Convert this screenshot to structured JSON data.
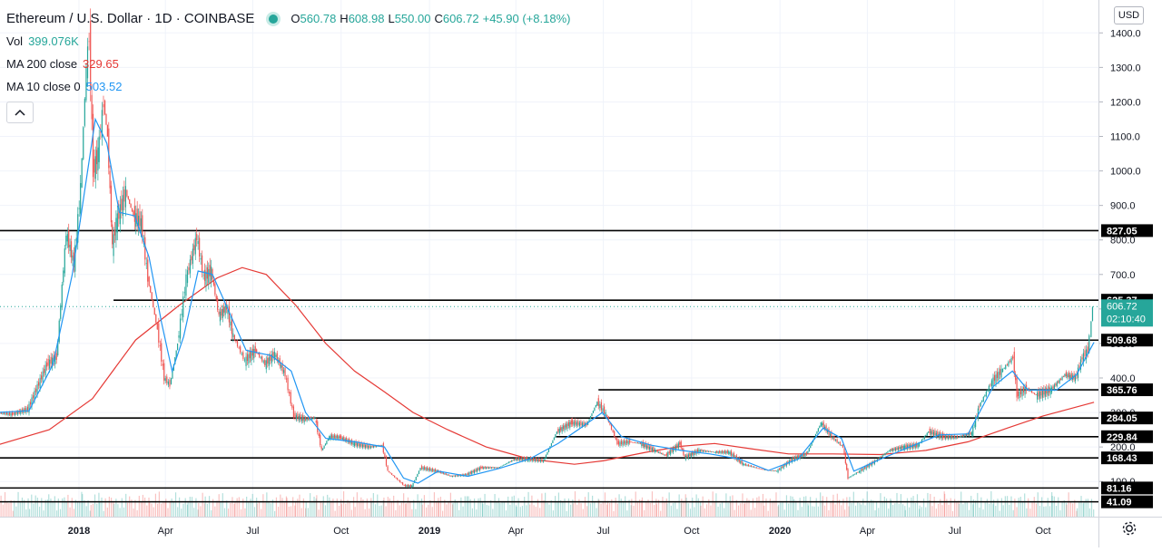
{
  "legend": {
    "title": "Ethereum / U.S. Dollar · 1D · COINBASE",
    "open_label": "O",
    "open": "560.78",
    "high_label": "H",
    "high": "608.98",
    "low_label": "L",
    "low": "550.00",
    "close_label": "C",
    "close": "606.72",
    "change": "+45.90 (+8.18%)",
    "vol_label": "Vol",
    "vol": "399.076K",
    "ma200_label": "MA 200 close",
    "ma200": "329.65",
    "ma10_label": "MA 10 close 0",
    "ma10": "503.52",
    "collapse_icon": "chevron-up-icon"
  },
  "currency_button": "USD",
  "settings_icon": "gear-icon",
  "colors": {
    "up": "#26a69a",
    "down": "#ef5350",
    "ma200": "#e53935",
    "ma10": "#2196f3",
    "level_line": "#000000",
    "grid": "#f0f3fa"
  },
  "chart_data": {
    "type": "line",
    "title": "Ethereum / U.S. Dollar · 1D · COINBASE",
    "price_axis_ticks": [
      100,
      200,
      300,
      400,
      500,
      600,
      700,
      800,
      900,
      1000,
      1100,
      1200,
      1300,
      1400
    ],
    "time_axis_ticks": [
      {
        "label": "2018",
        "date": "2018-01-01",
        "bold": true
      },
      {
        "label": "Apr",
        "date": "2018-04-01",
        "bold": false
      },
      {
        "label": "Jul",
        "date": "2018-07-01",
        "bold": false
      },
      {
        "label": "Oct",
        "date": "2018-10-01",
        "bold": false
      },
      {
        "label": "2019",
        "date": "2019-01-01",
        "bold": true
      },
      {
        "label": "Apr",
        "date": "2019-04-01",
        "bold": false
      },
      {
        "label": "Jul",
        "date": "2019-07-01",
        "bold": false
      },
      {
        "label": "Oct",
        "date": "2019-10-01",
        "bold": false
      },
      {
        "label": "2020",
        "date": "2020-01-01",
        "bold": true
      },
      {
        "label": "Apr",
        "date": "2020-04-01",
        "bold": false
      },
      {
        "label": "Jul",
        "date": "2020-07-01",
        "bold": false
      },
      {
        "label": "Oct",
        "date": "2020-10-01",
        "bold": false
      }
    ],
    "horizontal_levels": [
      {
        "value": 827.05,
        "label": "827.05",
        "from_date": "2017-10-01"
      },
      {
        "value": 625.37,
        "label": "625.37",
        "from_date": "2018-02-06"
      },
      {
        "value": 509.68,
        "label": "509.68",
        "from_date": "2018-06-08"
      },
      {
        "value": 365.76,
        "label": "365.76",
        "from_date": "2019-06-26"
      },
      {
        "value": 284.05,
        "label": "284.05",
        "from_date": "2017-10-01"
      },
      {
        "value": 229.84,
        "label": "229.84",
        "from_date": "2019-05-13"
      },
      {
        "value": 168.43,
        "label": "168.43",
        "from_date": "2017-10-01"
      },
      {
        "value": 81.16,
        "label": "81.16",
        "from_date": "2017-10-01"
      },
      {
        "value": 41.09,
        "label": "41.09",
        "from_date": "2017-10-01"
      }
    ],
    "last_price": {
      "value": 606.72,
      "label": "606.72",
      "countdown": "02:10:40"
    },
    "price_series": [
      {
        "date": "2017-10-05",
        "value": 300
      },
      {
        "date": "2017-10-25",
        "value": 295
      },
      {
        "date": "2017-11-10",
        "value": 310
      },
      {
        "date": "2017-11-30",
        "value": 440
      },
      {
        "date": "2017-12-10",
        "value": 460
      },
      {
        "date": "2017-12-20",
        "value": 820
      },
      {
        "date": "2017-12-28",
        "value": 730
      },
      {
        "date": "2018-01-04",
        "value": 950
      },
      {
        "date": "2018-01-10",
        "value": 1300
      },
      {
        "date": "2018-01-13",
        "value": 1390
      },
      {
        "date": "2018-01-17",
        "value": 1000
      },
      {
        "date": "2018-01-22",
        "value": 1050
      },
      {
        "date": "2018-01-28",
        "value": 1200
      },
      {
        "date": "2018-02-01",
        "value": 1100
      },
      {
        "date": "2018-02-06",
        "value": 780
      },
      {
        "date": "2018-02-10",
        "value": 850
      },
      {
        "date": "2018-02-20",
        "value": 940
      },
      {
        "date": "2018-02-28",
        "value": 870
      },
      {
        "date": "2018-03-08",
        "value": 850
      },
      {
        "date": "2018-03-15",
        "value": 690
      },
      {
        "date": "2018-03-25",
        "value": 540
      },
      {
        "date": "2018-04-01",
        "value": 400
      },
      {
        "date": "2018-04-07",
        "value": 380
      },
      {
        "date": "2018-04-15",
        "value": 500
      },
      {
        "date": "2018-04-24",
        "value": 690
      },
      {
        "date": "2018-05-05",
        "value": 810
      },
      {
        "date": "2018-05-12",
        "value": 690
      },
      {
        "date": "2018-05-20",
        "value": 710
      },
      {
        "date": "2018-05-28",
        "value": 580
      },
      {
        "date": "2018-06-05",
        "value": 605
      },
      {
        "date": "2018-06-12",
        "value": 520
      },
      {
        "date": "2018-06-24",
        "value": 450
      },
      {
        "date": "2018-07-05",
        "value": 480
      },
      {
        "date": "2018-07-15",
        "value": 440
      },
      {
        "date": "2018-07-25",
        "value": 470
      },
      {
        "date": "2018-08-05",
        "value": 410
      },
      {
        "date": "2018-08-14",
        "value": 290
      },
      {
        "date": "2018-08-25",
        "value": 280
      },
      {
        "date": "2018-09-05",
        "value": 285
      },
      {
        "date": "2018-09-12",
        "value": 190
      },
      {
        "date": "2018-09-20",
        "value": 230
      },
      {
        "date": "2018-10-01",
        "value": 228
      },
      {
        "date": "2018-10-15",
        "value": 210
      },
      {
        "date": "2018-11-01",
        "value": 200
      },
      {
        "date": "2018-11-14",
        "value": 205
      },
      {
        "date": "2018-11-20",
        "value": 130
      },
      {
        "date": "2018-12-07",
        "value": 88
      },
      {
        "date": "2018-12-15",
        "value": 86
      },
      {
        "date": "2018-12-24",
        "value": 140
      },
      {
        "date": "2019-01-10",
        "value": 130
      },
      {
        "date": "2019-01-25",
        "value": 115
      },
      {
        "date": "2019-02-10",
        "value": 120
      },
      {
        "date": "2019-02-25",
        "value": 140
      },
      {
        "date": "2019-03-15",
        "value": 140
      },
      {
        "date": "2019-04-01",
        "value": 165
      },
      {
        "date": "2019-04-15",
        "value": 165
      },
      {
        "date": "2019-05-01",
        "value": 160
      },
      {
        "date": "2019-05-15",
        "value": 245
      },
      {
        "date": "2019-05-30",
        "value": 270
      },
      {
        "date": "2019-06-15",
        "value": 265
      },
      {
        "date": "2019-06-26",
        "value": 330
      },
      {
        "date": "2019-07-05",
        "value": 295
      },
      {
        "date": "2019-07-17",
        "value": 210
      },
      {
        "date": "2019-07-30",
        "value": 215
      },
      {
        "date": "2019-08-10",
        "value": 210
      },
      {
        "date": "2019-08-25",
        "value": 190
      },
      {
        "date": "2019-09-05",
        "value": 175
      },
      {
        "date": "2019-09-20",
        "value": 210
      },
      {
        "date": "2019-09-25",
        "value": 170
      },
      {
        "date": "2019-10-10",
        "value": 190
      },
      {
        "date": "2019-10-26",
        "value": 185
      },
      {
        "date": "2019-11-10",
        "value": 185
      },
      {
        "date": "2019-11-25",
        "value": 150
      },
      {
        "date": "2019-12-15",
        "value": 135
      },
      {
        "date": "2019-12-30",
        "value": 130
      },
      {
        "date": "2020-01-15",
        "value": 165
      },
      {
        "date": "2020-01-30",
        "value": 180
      },
      {
        "date": "2020-02-14",
        "value": 270
      },
      {
        "date": "2020-02-25",
        "value": 230
      },
      {
        "date": "2020-03-08",
        "value": 200
      },
      {
        "date": "2020-03-13",
        "value": 110
      },
      {
        "date": "2020-03-25",
        "value": 130
      },
      {
        "date": "2020-04-10",
        "value": 158
      },
      {
        "date": "2020-04-25",
        "value": 190
      },
      {
        "date": "2020-05-10",
        "value": 200
      },
      {
        "date": "2020-05-25",
        "value": 205
      },
      {
        "date": "2020-06-05",
        "value": 245
      },
      {
        "date": "2020-06-20",
        "value": 230
      },
      {
        "date": "2020-07-05",
        "value": 228
      },
      {
        "date": "2020-07-20",
        "value": 240
      },
      {
        "date": "2020-07-28",
        "value": 320
      },
      {
        "date": "2020-08-10",
        "value": 390
      },
      {
        "date": "2020-08-20",
        "value": 420
      },
      {
        "date": "2020-09-01",
        "value": 460
      },
      {
        "date": "2020-09-05",
        "value": 350
      },
      {
        "date": "2020-09-15",
        "value": 370
      },
      {
        "date": "2020-09-25",
        "value": 350
      },
      {
        "date": "2020-10-10",
        "value": 365
      },
      {
        "date": "2020-10-25",
        "value": 410
      },
      {
        "date": "2020-11-05",
        "value": 400
      },
      {
        "date": "2020-11-12",
        "value": 460
      },
      {
        "date": "2020-11-18",
        "value": 480
      },
      {
        "date": "2020-11-20",
        "value": 520
      },
      {
        "date": "2020-11-23",
        "value": 606.72
      }
    ],
    "ma200_series": [
      {
        "date": "2017-10-01",
        "value": 200
      },
      {
        "date": "2017-12-01",
        "value": 250
      },
      {
        "date": "2018-01-15",
        "value": 340
      },
      {
        "date": "2018-03-01",
        "value": 510
      },
      {
        "date": "2018-04-15",
        "value": 610
      },
      {
        "date": "2018-05-25",
        "value": 690
      },
      {
        "date": "2018-06-20",
        "value": 720
      },
      {
        "date": "2018-07-15",
        "value": 700
      },
      {
        "date": "2018-08-15",
        "value": 610
      },
      {
        "date": "2018-09-15",
        "value": 500
      },
      {
        "date": "2018-10-15",
        "value": 420
      },
      {
        "date": "2018-11-15",
        "value": 360
      },
      {
        "date": "2018-12-15",
        "value": 300
      },
      {
        "date": "2019-01-20",
        "value": 250
      },
      {
        "date": "2019-03-01",
        "value": 200
      },
      {
        "date": "2019-04-15",
        "value": 165
      },
      {
        "date": "2019-06-01",
        "value": 150
      },
      {
        "date": "2019-07-01",
        "value": 160
      },
      {
        "date": "2019-08-15",
        "value": 185
      },
      {
        "date": "2019-09-20",
        "value": 202
      },
      {
        "date": "2019-10-25",
        "value": 210
      },
      {
        "date": "2019-12-01",
        "value": 195
      },
      {
        "date": "2020-01-10",
        "value": 180
      },
      {
        "date": "2020-02-25",
        "value": 180
      },
      {
        "date": "2020-04-15",
        "value": 178
      },
      {
        "date": "2020-06-01",
        "value": 190
      },
      {
        "date": "2020-07-15",
        "value": 215
      },
      {
        "date": "2020-08-25",
        "value": 255
      },
      {
        "date": "2020-10-01",
        "value": 290
      },
      {
        "date": "2020-11-23",
        "value": 329.65
      }
    ],
    "ma10_series": [
      {
        "date": "2017-10-05",
        "value": 300
      },
      {
        "date": "2017-11-10",
        "value": 305
      },
      {
        "date": "2017-12-05",
        "value": 440
      },
      {
        "date": "2017-12-25",
        "value": 700
      },
      {
        "date": "2018-01-10",
        "value": 1000
      },
      {
        "date": "2018-01-18",
        "value": 1150
      },
      {
        "date": "2018-01-30",
        "value": 1080
      },
      {
        "date": "2018-02-12",
        "value": 880
      },
      {
        "date": "2018-02-28",
        "value": 870
      },
      {
        "date": "2018-03-15",
        "value": 750
      },
      {
        "date": "2018-03-28",
        "value": 560
      },
      {
        "date": "2018-04-08",
        "value": 420
      },
      {
        "date": "2018-04-20",
        "value": 520
      },
      {
        "date": "2018-05-05",
        "value": 710
      },
      {
        "date": "2018-05-20",
        "value": 700
      },
      {
        "date": "2018-06-05",
        "value": 600
      },
      {
        "date": "2018-06-24",
        "value": 480
      },
      {
        "date": "2018-07-20",
        "value": 465
      },
      {
        "date": "2018-08-10",
        "value": 420
      },
      {
        "date": "2018-08-25",
        "value": 300
      },
      {
        "date": "2018-09-15",
        "value": 225
      },
      {
        "date": "2018-10-15",
        "value": 215
      },
      {
        "date": "2018-11-15",
        "value": 200
      },
      {
        "date": "2018-12-05",
        "value": 110
      },
      {
        "date": "2018-12-20",
        "value": 95
      },
      {
        "date": "2019-01-10",
        "value": 130
      },
      {
        "date": "2019-02-10",
        "value": 115
      },
      {
        "date": "2019-03-15",
        "value": 138
      },
      {
        "date": "2019-04-15",
        "value": 165
      },
      {
        "date": "2019-05-15",
        "value": 210
      },
      {
        "date": "2019-06-10",
        "value": 260
      },
      {
        "date": "2019-06-30",
        "value": 300
      },
      {
        "date": "2019-07-20",
        "value": 230
      },
      {
        "date": "2019-08-20",
        "value": 205
      },
      {
        "date": "2019-09-20",
        "value": 190
      },
      {
        "date": "2019-10-20",
        "value": 180
      },
      {
        "date": "2019-11-20",
        "value": 165
      },
      {
        "date": "2019-12-20",
        "value": 132
      },
      {
        "date": "2020-01-20",
        "value": 165
      },
      {
        "date": "2020-02-15",
        "value": 255
      },
      {
        "date": "2020-03-05",
        "value": 225
      },
      {
        "date": "2020-03-18",
        "value": 130
      },
      {
        "date": "2020-04-15",
        "value": 165
      },
      {
        "date": "2020-05-15",
        "value": 200
      },
      {
        "date": "2020-06-15",
        "value": 235
      },
      {
        "date": "2020-07-15",
        "value": 238
      },
      {
        "date": "2020-08-10",
        "value": 375
      },
      {
        "date": "2020-08-30",
        "value": 420
      },
      {
        "date": "2020-09-15",
        "value": 365
      },
      {
        "date": "2020-10-15",
        "value": 365
      },
      {
        "date": "2020-11-05",
        "value": 410
      },
      {
        "date": "2020-11-23",
        "value": 503.52
      }
    ]
  }
}
